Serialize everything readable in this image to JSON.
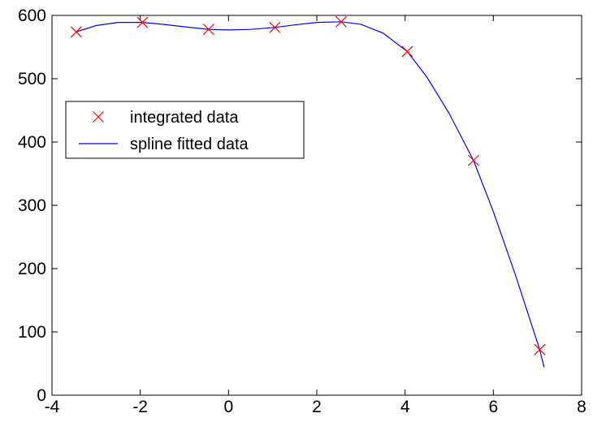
{
  "chart_data": {
    "type": "line",
    "title": "",
    "xlabel": "",
    "ylabel": "",
    "xlim": [
      -4,
      8
    ],
    "ylim": [
      0,
      600
    ],
    "xticks": [
      -4,
      -2,
      0,
      2,
      4,
      6,
      8
    ],
    "yticks": [
      0,
      100,
      200,
      300,
      400,
      500,
      600
    ],
    "grid": false,
    "legend_position": "center-left",
    "series": [
      {
        "name": "integrated data",
        "style": "markers",
        "marker": "x",
        "color": "#ff0000",
        "x": [
          -3.45,
          -1.95,
          -0.45,
          1.05,
          2.55,
          4.05,
          5.55,
          7.05
        ],
        "y": [
          574,
          589,
          578,
          581,
          590,
          543,
          371,
          72
        ]
      },
      {
        "name": "spline fitted data",
        "style": "line",
        "color": "#0000ff",
        "x": [
          -3.45,
          -3.0,
          -2.5,
          -1.95,
          -1.5,
          -1.0,
          -0.45,
          0.0,
          0.5,
          1.05,
          1.5,
          2.0,
          2.55,
          3.0,
          3.5,
          4.05,
          4.5,
          5.0,
          5.55,
          6.0,
          6.5,
          7.05,
          7.15
        ],
        "y": [
          574,
          584,
          589,
          589,
          586,
          582,
          578,
          577,
          578,
          581,
          585,
          589,
          590,
          586,
          572,
          543,
          502,
          445,
          371,
          290,
          190,
          72,
          44
        ]
      }
    ]
  }
}
